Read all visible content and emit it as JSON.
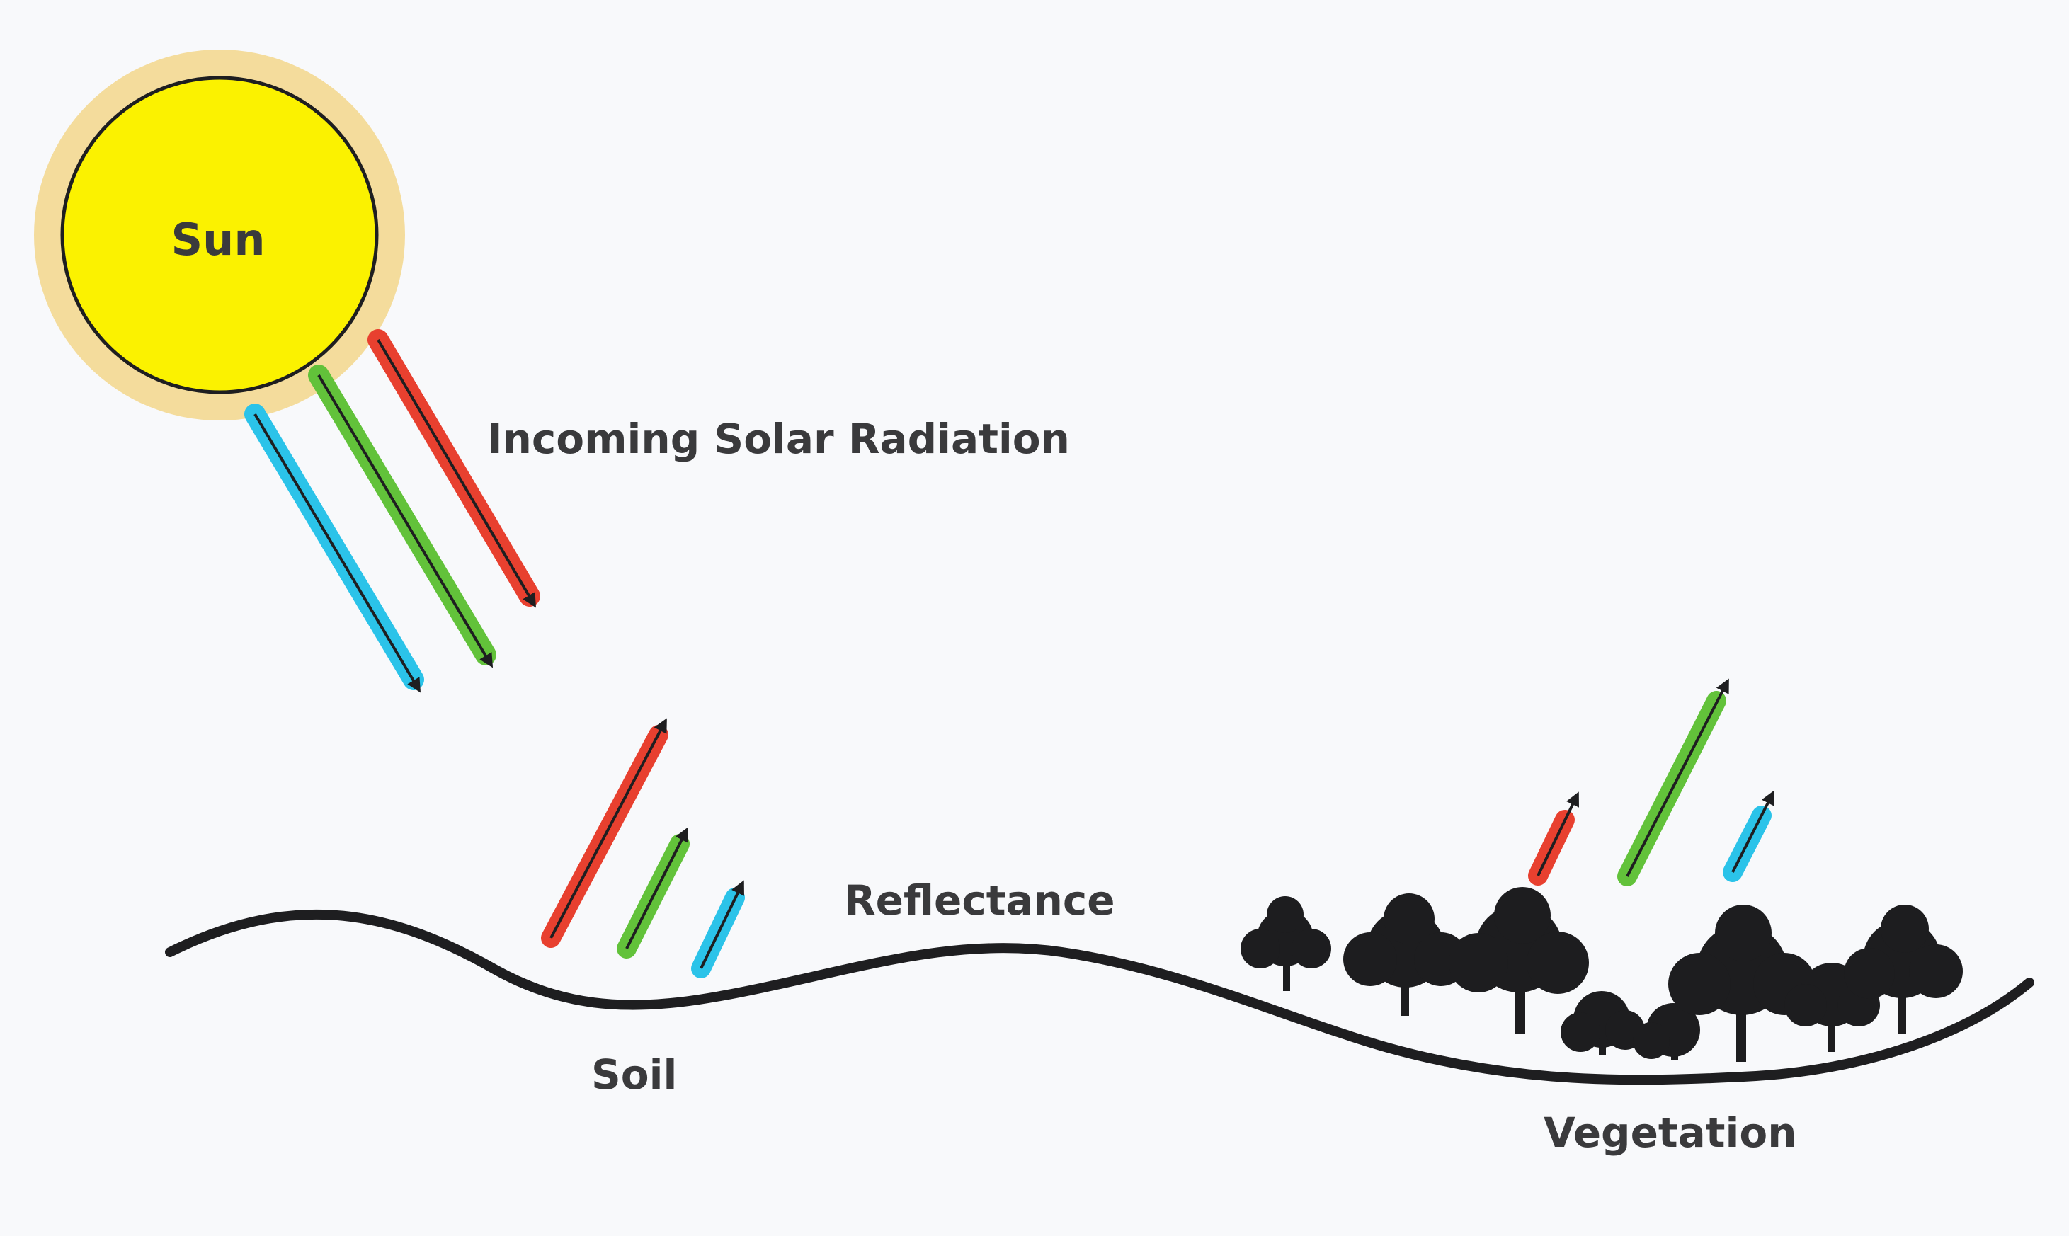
{
  "diagram": {
    "labels": {
      "sun": "Sun",
      "incoming": "Incoming Solar Radiation",
      "reflectance": "Reflectance",
      "soil": "Soil",
      "vegetation": "Vegetation"
    },
    "colors": {
      "background": "#f8f9fb",
      "sun_fill": "#fbf200",
      "sun_halo": "#f4dc9c",
      "red_band": "#e8402f",
      "green_band": "#62c23a",
      "blue_band": "#2bc3e9",
      "ground_line": "#1e1e20",
      "tree": "#1d1d1f"
    },
    "bands": [
      "red",
      "green",
      "blue"
    ],
    "soil_reflectance": [
      "high red",
      "medium green",
      "low blue"
    ],
    "vegetation_reflectance": [
      "low red",
      "high green",
      "low blue"
    ],
    "icons": [
      "sun-icon",
      "tree-icon",
      "arrow-icon"
    ]
  }
}
